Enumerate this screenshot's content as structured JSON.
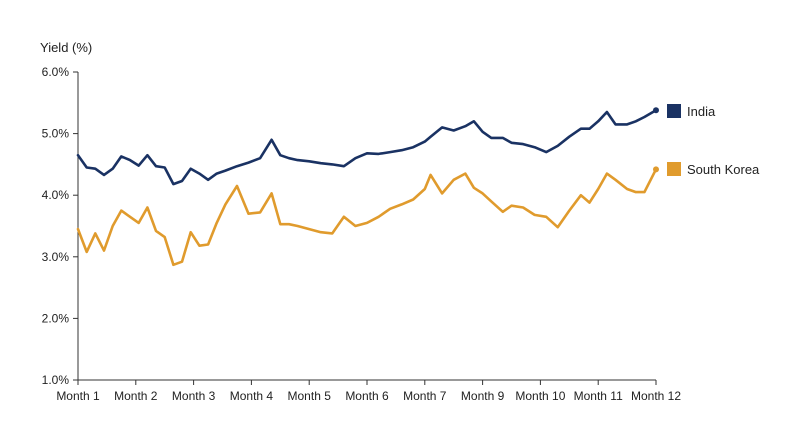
{
  "chart_data": {
    "type": "line",
    "ylabel": "Yield (%)",
    "xlabel": "",
    "ylim": [
      1.0,
      6.0
    ],
    "yticks": [
      "1.0%",
      "2.0%",
      "3.0%",
      "4.0%",
      "5.0%",
      "6.0%"
    ],
    "categories": [
      "Month 1",
      "Month 2",
      "Month 3",
      "Month 4",
      "Month 5",
      "Month 6",
      "Month 7",
      "Month 8",
      "Month 9",
      "Month 10",
      "Month 11",
      "Month 12"
    ],
    "x_labels": [
      "Month 1",
      "Month 2",
      "Month 3",
      "Month 4",
      "Month 5",
      "Month 6",
      "Month 7",
      "Month 9",
      "Month 10",
      "Month 11",
      "Month 12"
    ],
    "x_range": [
      0,
      10
    ],
    "grid": false,
    "legend_position": "right",
    "series": [
      {
        "name": "India",
        "color": "#1a3263",
        "x": [
          0,
          0.15,
          0.3,
          0.45,
          0.6,
          0.75,
          0.9,
          1.05,
          1.2,
          1.35,
          1.5,
          1.65,
          1.8,
          1.95,
          2.1,
          2.25,
          2.4,
          2.55,
          2.75,
          2.95,
          3.15,
          3.35,
          3.5,
          3.65,
          3.8,
          4.0,
          4.2,
          4.4,
          4.6,
          4.8,
          5.0,
          5.2,
          5.4,
          5.6,
          5.8,
          6.0,
          6.1,
          6.3,
          6.5,
          6.7,
          6.85,
          7.0,
          7.15,
          7.35,
          7.5,
          7.7,
          7.9,
          8.1,
          8.3,
          8.5,
          8.7,
          8.85,
          9.0,
          9.15,
          9.3,
          9.5,
          9.65,
          9.8,
          10.0
        ],
        "values": [
          4.65,
          4.45,
          4.43,
          4.33,
          4.43,
          4.63,
          4.57,
          4.48,
          4.65,
          4.47,
          4.45,
          4.18,
          4.23,
          4.43,
          4.35,
          4.25,
          4.35,
          4.4,
          4.47,
          4.53,
          4.6,
          4.9,
          4.65,
          4.6,
          4.57,
          4.55,
          4.52,
          4.5,
          4.47,
          4.6,
          4.68,
          4.67,
          4.7,
          4.73,
          4.78,
          4.87,
          4.95,
          5.1,
          5.05,
          5.12,
          5.2,
          5.03,
          4.93,
          4.93,
          4.85,
          4.83,
          4.78,
          4.7,
          4.8,
          4.95,
          5.08,
          5.08,
          5.2,
          5.35,
          5.15,
          5.15,
          5.2,
          5.27,
          5.38
        ]
      },
      {
        "name": "South Korea",
        "color": "#e09b2d",
        "x": [
          0,
          0.15,
          0.3,
          0.45,
          0.6,
          0.75,
          0.9,
          1.05,
          1.2,
          1.35,
          1.5,
          1.65,
          1.8,
          1.95,
          2.1,
          2.25,
          2.4,
          2.55,
          2.75,
          2.95,
          3.15,
          3.35,
          3.5,
          3.65,
          3.8,
          4.0,
          4.2,
          4.4,
          4.6,
          4.8,
          5.0,
          5.2,
          5.4,
          5.6,
          5.8,
          6.0,
          6.1,
          6.3,
          6.5,
          6.7,
          6.85,
          7.0,
          7.15,
          7.35,
          7.5,
          7.7,
          7.9,
          8.1,
          8.3,
          8.5,
          8.7,
          8.85,
          9.0,
          9.15,
          9.3,
          9.5,
          9.65,
          9.8,
          10.0
        ],
        "values": [
          3.45,
          3.08,
          3.38,
          3.1,
          3.5,
          3.75,
          3.65,
          3.55,
          3.8,
          3.42,
          3.32,
          2.87,
          2.92,
          3.4,
          3.18,
          3.2,
          3.55,
          3.85,
          4.15,
          3.7,
          3.72,
          4.03,
          3.53,
          3.53,
          3.5,
          3.45,
          3.4,
          3.38,
          3.65,
          3.5,
          3.55,
          3.65,
          3.78,
          3.85,
          3.93,
          4.1,
          4.33,
          4.03,
          4.25,
          4.35,
          4.12,
          4.03,
          3.9,
          3.73,
          3.83,
          3.8,
          3.68,
          3.65,
          3.48,
          3.75,
          4.0,
          3.88,
          4.1,
          4.35,
          4.25,
          4.1,
          4.05,
          4.05,
          4.42
        ]
      }
    ]
  }
}
